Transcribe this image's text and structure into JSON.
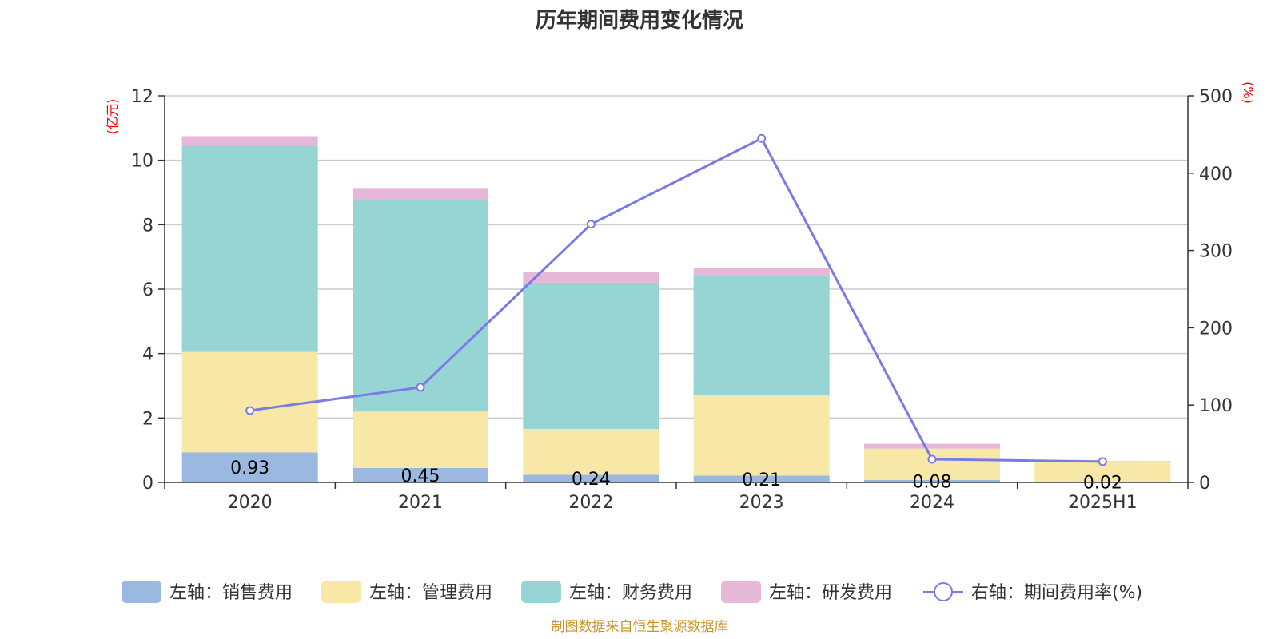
{
  "chart_data": {
    "type": "bar",
    "title": "历年期间费用变化情况",
    "categories": [
      "2020",
      "2021",
      "2022",
      "2023",
      "2024",
      "2025H1"
    ],
    "left_axis": {
      "unit": "(亿元)",
      "ylim": [
        0,
        12
      ],
      "ticks": [
        "0",
        "2",
        "4",
        "6",
        "8",
        "10",
        "12"
      ]
    },
    "right_axis": {
      "unit": "(%)",
      "ylim": [
        0,
        500
      ],
      "ticks": [
        "0",
        "100",
        "200",
        "300",
        "400",
        "500"
      ]
    },
    "series": [
      {
        "name": "左轴：销售费用",
        "color": "#9bb8e0",
        "values": [
          0.93,
          0.45,
          0.24,
          0.21,
          0.08,
          0.02
        ],
        "labels": [
          "0.93",
          "0.45",
          "0.24",
          "0.21",
          "0.08",
          "0.02"
        ]
      },
      {
        "name": "左轴：管理费用",
        "color": "#f8e8a8",
        "values": [
          3.12,
          1.75,
          1.42,
          2.49,
          0.97,
          0.6
        ]
      },
      {
        "name": "左轴：财务费用",
        "color": "#97d4d4",
        "values": [
          6.4,
          6.56,
          4.54,
          3.74,
          0.0,
          0.0
        ]
      },
      {
        "name": "左轴：研发费用",
        "color": "#e8b8d8",
        "values": [
          0.3,
          0.38,
          0.34,
          0.23,
          0.15,
          0.04
        ]
      }
    ],
    "line": {
      "name": "右轴：期间费用率(%)",
      "color": "#7b7be8",
      "values": [
        93,
        123,
        334,
        445,
        30,
        27
      ]
    },
    "grid": true,
    "legend_position": "bottom"
  },
  "source": "制图数据来自恒生聚源数据库"
}
